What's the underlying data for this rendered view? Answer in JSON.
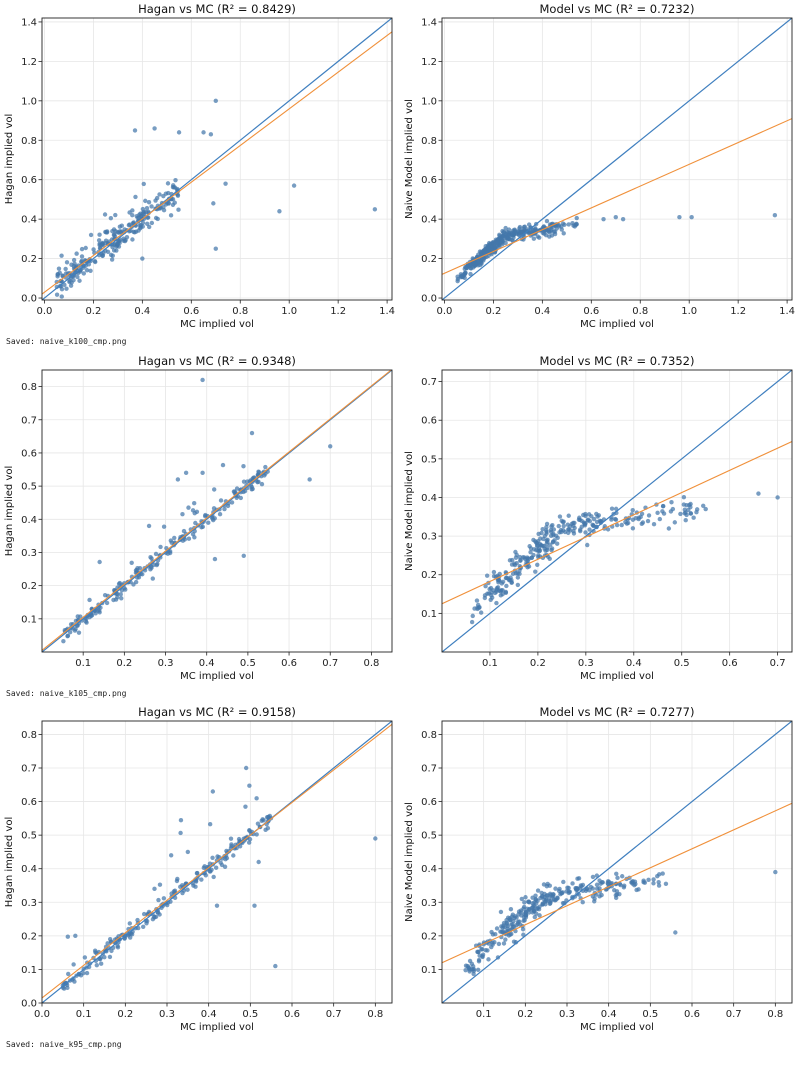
{
  "outputs": [
    {
      "saved_text": "Saved: naive_k100_cmp.png",
      "panels": [
        {
          "id": "a",
          "title": "Hagan vs MC  (R² = 0.8429)",
          "xlabel": "MC implied vol",
          "ylabel": "Hagan implied vol",
          "xlim": [
            -0.01,
            1.42
          ],
          "ylim": [
            -0.01,
            1.42
          ],
          "xticks": [
            0.0,
            0.2,
            0.4,
            0.6,
            0.8,
            1.0,
            1.2,
            1.4
          ],
          "yticks": [
            0.0,
            0.2,
            0.4,
            0.6,
            0.8,
            1.0,
            1.2,
            1.4
          ],
          "xticklabels": [
            "0.0",
            "0.2",
            "0.4",
            "0.6",
            "0.8",
            "1.0",
            "1.2",
            "1.4"
          ],
          "yticklabels": [
            "0.0",
            "0.2",
            "0.4",
            "0.6",
            "0.8",
            "1.0",
            "1.2",
            "1.4"
          ],
          "identity": [
            [
              -0.01,
              -0.01
            ],
            [
              1.42,
              1.42
            ]
          ],
          "fit": [
            [
              -0.01,
              0.02
            ],
            [
              1.42,
              1.35
            ]
          ],
          "model": "hagan",
          "seed": 11,
          "n": 260,
          "outliers": [
            [
              1.35,
              0.45
            ],
            [
              1.02,
              0.57
            ],
            [
              0.96,
              0.44
            ],
            [
              0.7,
              1.0
            ],
            [
              0.7,
              0.25
            ],
            [
              0.74,
              0.58
            ],
            [
              0.69,
              0.48
            ],
            [
              0.65,
              0.84
            ],
            [
              0.45,
              0.86
            ],
            [
              0.37,
              0.85
            ],
            [
              0.68,
              0.83
            ],
            [
              0.55,
              0.84
            ],
            [
              0.4,
              0.2
            ]
          ]
        },
        {
          "id": "b",
          "title": "Model vs MC  (R² = 0.7232)",
          "xlabel": "MC implied vol",
          "ylabel": "Naive Model implied vol",
          "xlim": [
            -0.01,
            1.42
          ],
          "ylim": [
            -0.01,
            1.42
          ],
          "xticks": [
            0.0,
            0.2,
            0.4,
            0.6,
            0.8,
            1.0,
            1.2,
            1.4
          ],
          "yticks": [
            0.0,
            0.2,
            0.4,
            0.6,
            0.8,
            1.0,
            1.2,
            1.4
          ],
          "xticklabels": [
            "0.0",
            "0.2",
            "0.4",
            "0.6",
            "0.8",
            "1.0",
            "1.2",
            "1.4"
          ],
          "yticklabels": [
            "0.0",
            "0.2",
            "0.4",
            "0.6",
            "0.8",
            "1.0",
            "1.2",
            "1.4"
          ],
          "identity": [
            [
              -0.01,
              -0.01
            ],
            [
              1.42,
              1.42
            ]
          ],
          "fit": [
            [
              -0.01,
              0.12
            ],
            [
              1.42,
              0.91
            ]
          ],
          "model": "naive",
          "seed": 12,
          "n": 330,
          "outliers": [
            [
              1.35,
              0.42
            ],
            [
              1.01,
              0.41
            ],
            [
              0.96,
              0.41
            ],
            [
              0.73,
              0.4
            ],
            [
              0.7,
              0.41
            ],
            [
              0.65,
              0.4
            ]
          ]
        }
      ]
    },
    {
      "saved_text": "Saved: naive_k105_cmp.png",
      "panels": [
        {
          "id": "c",
          "title": "Hagan vs MC  (R² = 0.9348)",
          "xlabel": "MC implied vol",
          "ylabel": "Hagan implied vol",
          "xlim": [
            0.0,
            0.85
          ],
          "ylim": [
            0.0,
            0.85
          ],
          "xticks": [
            0.1,
            0.2,
            0.3,
            0.4,
            0.5,
            0.6,
            0.7,
            0.8
          ],
          "yticks": [
            0.1,
            0.2,
            0.3,
            0.4,
            0.5,
            0.6,
            0.7,
            0.8
          ],
          "xticklabels": [
            "0.1",
            "0.2",
            "0.3",
            "0.4",
            "0.5",
            "0.6",
            "0.7",
            "0.8"
          ],
          "yticklabels": [
            "0.1",
            "0.2",
            "0.3",
            "0.4",
            "0.5",
            "0.6",
            "0.7",
            "0.8"
          ],
          "identity": [
            [
              0.0,
              0.0
            ],
            [
              0.85,
              0.85
            ]
          ],
          "fit": [
            [
              0.0,
              0.005
            ],
            [
              0.85,
              0.852
            ]
          ],
          "model": "hagan_tight",
          "seed": 21,
          "n": 230,
          "outliers": [
            [
              0.39,
              0.82
            ],
            [
              0.51,
              0.66
            ],
            [
              0.7,
              0.62
            ],
            [
              0.65,
              0.52
            ],
            [
              0.49,
              0.29
            ],
            [
              0.42,
              0.28
            ],
            [
              0.35,
              0.54
            ],
            [
              0.39,
              0.54
            ],
            [
              0.33,
              0.52
            ],
            [
              0.26,
              0.38
            ]
          ]
        },
        {
          "id": "d",
          "title": "Model vs MC  (R² = 0.7352)",
          "xlabel": "MC implied vol",
          "ylabel": "Naive Model implied vol",
          "xlim": [
            0.0,
            0.73
          ],
          "ylim": [
            0.0,
            0.73
          ],
          "xticks": [
            0.1,
            0.2,
            0.3,
            0.4,
            0.5,
            0.6,
            0.7
          ],
          "yticks": [
            0.1,
            0.2,
            0.3,
            0.4,
            0.5,
            0.6,
            0.7
          ],
          "xticklabels": [
            "0.1",
            "0.2",
            "0.3",
            "0.4",
            "0.5",
            "0.6",
            "0.7"
          ],
          "yticklabels": [
            "0.1",
            "0.2",
            "0.3",
            "0.4",
            "0.5",
            "0.6",
            "0.7"
          ],
          "identity": [
            [
              0.0,
              0.0
            ],
            [
              0.73,
              0.73
            ]
          ],
          "fit": [
            [
              0.0,
              0.125
            ],
            [
              0.73,
              0.545
            ]
          ],
          "model": "naive",
          "seed": 22,
          "n": 300,
          "outliers": [
            [
              0.7,
              0.4
            ],
            [
              0.66,
              0.41
            ],
            [
              0.55,
              0.37
            ]
          ]
        }
      ]
    },
    {
      "saved_text": "Saved: naive_k95_cmp.png",
      "panels": [
        {
          "id": "e",
          "title": "Hagan vs MC  (R² = 0.9158)",
          "xlabel": "MC implied vol",
          "ylabel": "Hagan implied vol",
          "xlim": [
            0.0,
            0.84
          ],
          "ylim": [
            0.0,
            0.84
          ],
          "xticks": [
            0.0,
            0.1,
            0.2,
            0.3,
            0.4,
            0.5,
            0.6,
            0.7,
            0.8
          ],
          "yticks": [
            0.0,
            0.1,
            0.2,
            0.3,
            0.4,
            0.5,
            0.6,
            0.7,
            0.8
          ],
          "xticklabels": [
            "0.0",
            "0.1",
            "0.2",
            "0.3",
            "0.4",
            "0.5",
            "0.6",
            "0.7",
            "0.8"
          ],
          "yticklabels": [
            "0.0",
            "0.1",
            "0.2",
            "0.3",
            "0.4",
            "0.5",
            "0.6",
            "0.7",
            "0.8"
          ],
          "identity": [
            [
              0.0,
              0.0
            ],
            [
              0.84,
              0.84
            ]
          ],
          "fit": [
            [
              0.0,
              0.015
            ],
            [
              0.84,
              0.83
            ]
          ],
          "model": "hagan_tight",
          "seed": 31,
          "n": 230,
          "outliers": [
            [
              0.8,
              0.49
            ],
            [
              0.56,
              0.11
            ],
            [
              0.51,
              0.29
            ],
            [
              0.49,
              0.7
            ],
            [
              0.41,
              0.63
            ],
            [
              0.42,
              0.29
            ],
            [
              0.52,
              0.42
            ],
            [
              0.35,
              0.45
            ],
            [
              0.31,
              0.44
            ],
            [
              0.27,
              0.34
            ],
            [
              0.08,
              0.2
            ]
          ]
        },
        {
          "id": "f",
          "title": "Model vs MC  (R² = 0.7277)",
          "xlabel": "MC implied vol",
          "ylabel": "Naive Model implied vol",
          "xlim": [
            0.0,
            0.84
          ],
          "ylim": [
            0.0,
            0.84
          ],
          "xticks": [
            0.1,
            0.2,
            0.3,
            0.4,
            0.5,
            0.6,
            0.7,
            0.8
          ],
          "yticks": [
            0.1,
            0.2,
            0.3,
            0.4,
            0.5,
            0.6,
            0.7,
            0.8
          ],
          "xticklabels": [
            "0.1",
            "0.2",
            "0.3",
            "0.4",
            "0.5",
            "0.6",
            "0.7",
            "0.8"
          ],
          "yticklabels": [
            "0.1",
            "0.2",
            "0.3",
            "0.4",
            "0.5",
            "0.6",
            "0.7",
            "0.8"
          ],
          "identity": [
            [
              0.0,
              0.0
            ],
            [
              0.84,
              0.84
            ]
          ],
          "fit": [
            [
              0.0,
              0.12
            ],
            [
              0.84,
              0.595
            ]
          ],
          "model": "naive",
          "seed": 32,
          "n": 300,
          "outliers": [
            [
              0.8,
              0.39
            ],
            [
              0.56,
              0.21
            ],
            [
              0.52,
              0.36
            ]
          ]
        }
      ]
    }
  ],
  "colors": {
    "points": "#4477aa",
    "identity": "#3f7fbf",
    "fit": "#f0903a",
    "grid": "#e6e6e6",
    "axis": "#222222"
  },
  "chart_data": [
    {
      "type": "scatter",
      "title": "Hagan vs MC  (R² = 0.8429)",
      "xlabel": "MC implied vol",
      "ylabel": "Hagan implied vol",
      "xlim": [
        -0.01,
        1.42
      ],
      "ylim": [
        -0.01,
        1.42
      ],
      "grid": true,
      "series": [
        {
          "values": "approx. 260 points clustered along y=x for x in 0.05–0.6; outliers (1.35,0.45),(1.02,0.57),(0.96,0.44),(0.70,1.0)"
        }
      ]
    },
    {
      "type": "scatter",
      "title": "Model vs MC  (R² = 0.7232)",
      "xlabel": "MC implied vol",
      "ylabel": "Naive Model implied vol",
      "xlim": [
        -0.01,
        1.42
      ],
      "ylim": [
        -0.01,
        1.42
      ],
      "grid": true
    },
    {
      "type": "scatter",
      "title": "Hagan vs MC  (R² = 0.9348)",
      "xlabel": "MC implied vol",
      "ylabel": "Hagan implied vol",
      "xlim": [
        0.0,
        0.85
      ],
      "ylim": [
        0.0,
        0.85
      ],
      "grid": true
    },
    {
      "type": "scatter",
      "title": "Model vs MC  (R² = 0.7352)",
      "xlabel": "MC implied vol",
      "ylabel": "Naive Model implied vol",
      "xlim": [
        0.0,
        0.73
      ],
      "ylim": [
        0.0,
        0.73
      ],
      "grid": true
    },
    {
      "type": "scatter",
      "title": "Hagan vs MC  (R² = 0.9158)",
      "xlabel": "MC implied vol",
      "ylabel": "Hagan implied vol",
      "xlim": [
        0.0,
        0.84
      ],
      "ylim": [
        0.0,
        0.84
      ],
      "grid": true
    },
    {
      "type": "scatter",
      "title": "Model vs MC  (R² = 0.7277)",
      "xlabel": "MC implied vol",
      "ylabel": "Naive Model implied vol",
      "xlim": [
        0.0,
        0.84
      ],
      "ylim": [
        0.0,
        0.84
      ],
      "grid": true
    }
  ]
}
